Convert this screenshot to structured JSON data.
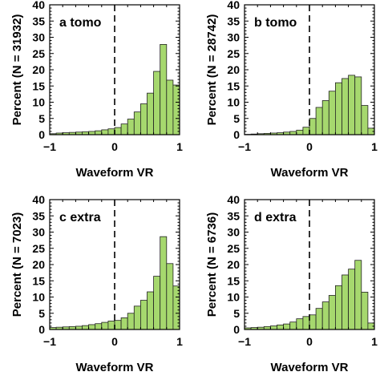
{
  "colors": {
    "bar_fill": "#a6d86e",
    "bar_stroke": "#222222",
    "frame": "#000000",
    "zero_line": "#000000"
  },
  "chart_data": [
    {
      "type": "bar",
      "panel_label": "a  tomo",
      "xlabel": "Waveform VR",
      "ylabel": "Percent  (N = 31932)",
      "xlim": [
        -1,
        1
      ],
      "ylim": [
        0,
        40
      ],
      "xticks": [
        "−1",
        "0",
        "1"
      ],
      "yticks": [
        "0",
        "5",
        "10",
        "15",
        "20",
        "25",
        "30",
        "35",
        "40"
      ],
      "bin_width": 0.1,
      "bin_starts": [
        -1.0,
        -0.9,
        -0.8,
        -0.7,
        -0.6,
        -0.5,
        -0.4,
        -0.3,
        -0.2,
        -0.1,
        0.0,
        0.1,
        0.2,
        0.3,
        0.4,
        0.5,
        0.6,
        0.7,
        0.8,
        0.9
      ],
      "values": [
        0.3,
        0.5,
        0.6,
        0.7,
        0.8,
        0.9,
        1.0,
        1.2,
        1.5,
        1.8,
        2.2,
        3.3,
        4.8,
        7.0,
        9.5,
        12.8,
        19.5,
        27.8,
        16.8,
        15.3
      ],
      "zero_line": true,
      "grid": false
    },
    {
      "type": "bar",
      "panel_label": "b  tomo",
      "xlabel": "Waveform VR",
      "ylabel": "Percent  (N = 28742)",
      "xlim": [
        -1,
        1
      ],
      "ylim": [
        0,
        40
      ],
      "xticks": [
        "−1",
        "0",
        "1"
      ],
      "yticks": [
        "0",
        "5",
        "10",
        "15",
        "20",
        "25",
        "30",
        "35",
        "40"
      ],
      "bin_width": 0.1,
      "bin_starts": [
        -1.0,
        -0.9,
        -0.8,
        -0.7,
        -0.6,
        -0.5,
        -0.4,
        -0.3,
        -0.2,
        -0.1,
        0.0,
        0.1,
        0.2,
        0.3,
        0.4,
        0.5,
        0.6,
        0.7,
        0.8,
        0.9
      ],
      "values": [
        0.1,
        0.2,
        0.3,
        0.4,
        0.5,
        0.6,
        0.8,
        1.0,
        1.4,
        2.3,
        5.0,
        8.4,
        10.5,
        13.4,
        16.0,
        17.3,
        18.3,
        17.8,
        9.0,
        2.0
      ],
      "zero_line": true,
      "grid": false
    },
    {
      "type": "bar",
      "panel_label": "c  extra",
      "xlabel": "Waveform VR",
      "ylabel": "Percent  (N = 7023)",
      "xlim": [
        -1,
        1
      ],
      "ylim": [
        0,
        40
      ],
      "xticks": [
        "−1",
        "0",
        "1"
      ],
      "yticks": [
        "0",
        "5",
        "10",
        "15",
        "20",
        "25",
        "30",
        "35",
        "40"
      ],
      "bin_width": 0.1,
      "bin_starts": [
        -1.0,
        -0.9,
        -0.8,
        -0.7,
        -0.6,
        -0.5,
        -0.4,
        -0.3,
        -0.2,
        -0.1,
        0.0,
        0.1,
        0.2,
        0.3,
        0.4,
        0.5,
        0.6,
        0.7,
        0.8,
        0.9
      ],
      "values": [
        0.6,
        0.7,
        0.8,
        0.9,
        1.0,
        1.2,
        1.5,
        1.8,
        2.2,
        2.6,
        2.8,
        3.6,
        5.0,
        7.2,
        9.0,
        11.6,
        16.4,
        28.6,
        20.3,
        13.4
      ],
      "zero_line": true,
      "grid": false
    },
    {
      "type": "bar",
      "panel_label": "d  extra",
      "xlabel": "Waveform VR",
      "ylabel": "Percent  (N = 6736)",
      "xlim": [
        -1,
        1
      ],
      "ylim": [
        0,
        40
      ],
      "xticks": [
        "−1",
        "0",
        "1"
      ],
      "yticks": [
        "0",
        "5",
        "10",
        "15",
        "20",
        "25",
        "30",
        "35",
        "40"
      ],
      "bin_width": 0.1,
      "bin_starts": [
        -1.0,
        -0.9,
        -0.8,
        -0.7,
        -0.6,
        -0.5,
        -0.4,
        -0.3,
        -0.2,
        -0.1,
        0.0,
        0.1,
        0.2,
        0.3,
        0.4,
        0.5,
        0.6,
        0.7,
        0.8,
        0.9
      ],
      "values": [
        0.5,
        0.6,
        0.7,
        0.9,
        1.1,
        1.4,
        1.7,
        2.3,
        3.3,
        4.0,
        4.5,
        6.5,
        8.5,
        10.5,
        13.5,
        16.8,
        18.6,
        21.3,
        11.5,
        2.0
      ],
      "zero_line": true,
      "grid": false
    }
  ]
}
